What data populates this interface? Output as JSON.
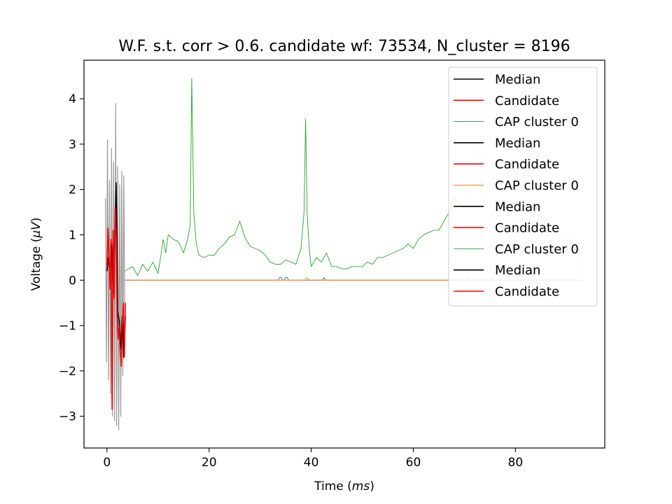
{
  "chart_data": {
    "type": "line",
    "title": "W.F. s.t. corr > 0.6. candidate wf: 73534, N_cluster = 8196",
    "xlabel_prefix": "Time (",
    "xlabel_unit": "ms",
    "xlabel_suffix": ")",
    "ylabel_prefix": "Voltage (",
    "ylabel_unit": "μV",
    "ylabel_suffix": ")",
    "xlim": [
      -4.5,
      97.5
    ],
    "ylim": [
      -3.7,
      4.85
    ],
    "xticks": [
      0,
      20,
      40,
      60,
      80
    ],
    "xtick_labels": [
      "0",
      "20",
      "40",
      "60",
      "80"
    ],
    "yticks": [
      -3,
      -2,
      -1,
      0,
      1,
      2,
      3,
      4
    ],
    "ytick_labels": [
      "−3",
      "−2",
      "−1",
      "0",
      "1",
      "2",
      "3",
      "4"
    ],
    "grid": false,
    "legend_position": "upper right",
    "legend": [
      {
        "label": "Median",
        "color": "#000000"
      },
      {
        "label": "Candidate",
        "color": "#ff0000"
      },
      {
        "label": "CAP cluster 0",
        "color": "#1f77b4"
      },
      {
        "label": "Median",
        "color": "#000000"
      },
      {
        "label": "Candidate",
        "color": "#ff0000"
      },
      {
        "label": "CAP cluster 0",
        "color": "#ff7f0e"
      },
      {
        "label": "Median",
        "color": "#000000"
      },
      {
        "label": "Candidate",
        "color": "#ff0000"
      },
      {
        "label": "CAP cluster 0",
        "color": "#2ca02c"
      },
      {
        "label": "Median",
        "color": "#000000"
      },
      {
        "label": "Candidate",
        "color": "#ff0000"
      }
    ],
    "series": [
      {
        "name": "CAP cluster 0",
        "color": "#2ca02c",
        "x": [
          3.5,
          5,
          6,
          7,
          8,
          9,
          10,
          10.5,
          11,
          11.5,
          12,
          13,
          14,
          15,
          15.8,
          16.3,
          16.6,
          17.0,
          17.5,
          18,
          19,
          20,
          21,
          22,
          23,
          24,
          25,
          26,
          27,
          28,
          29,
          30,
          31,
          32,
          33,
          34,
          35,
          36,
          37,
          38,
          38.6,
          38.9,
          39.2,
          39.6,
          40,
          41,
          42,
          43,
          44,
          45,
          46,
          47,
          48,
          49,
          50,
          51,
          52,
          53,
          54,
          55,
          56,
          57,
          58,
          59,
          60,
          61,
          62,
          63,
          64,
          65,
          66,
          67,
          68,
          69,
          70,
          71,
          72,
          73,
          74,
          75,
          76,
          77,
          78,
          79,
          80,
          81,
          82,
          83,
          84,
          85,
          86,
          87,
          88,
          89,
          90,
          91,
          92,
          93
        ],
        "y": [
          0.2,
          0.3,
          0.1,
          0.35,
          0.2,
          0.4,
          0.15,
          0.5,
          0.9,
          0.6,
          1.0,
          0.9,
          0.85,
          0.6,
          0.9,
          1.2,
          4.45,
          1.5,
          0.8,
          0.55,
          0.5,
          0.55,
          0.55,
          0.7,
          0.8,
          0.95,
          1.0,
          1.3,
          0.95,
          0.75,
          0.7,
          0.65,
          0.55,
          0.4,
          0.35,
          0.35,
          0.45,
          0.4,
          0.35,
          0.7,
          1.5,
          3.55,
          1.5,
          0.7,
          0.3,
          0.5,
          0.4,
          0.6,
          0.3,
          0.3,
          0.25,
          0.25,
          0.3,
          0.3,
          0.3,
          0.4,
          0.35,
          0.5,
          0.5,
          0.55,
          0.6,
          0.65,
          0.7,
          0.8,
          0.7,
          0.9,
          1.0,
          1.05,
          1.1,
          1.1,
          1.3,
          1.5,
          1.8,
          1.7,
          1.6,
          1.8,
          2.1,
          2.9,
          1.9,
          1.6,
          1.3,
          1.5,
          1.4,
          1.5,
          1.2,
          1.1,
          1.2,
          1.35,
          1.1,
          1.4,
          0.9,
          1.15,
          1.25,
          0.9,
          1.1,
          0.7,
          0.5,
          0.2
        ],
        "alpha_after_x": 70,
        "alpha_after": 0.25
      },
      {
        "name": "CAP cluster 0",
        "color": "#1f77b4",
        "x": [
          3.5,
          33.5,
          33.8,
          34.1,
          34.4,
          34.7,
          35.0,
          35.3,
          35.6,
          42.2,
          42.5,
          42.8,
          93
        ],
        "y": [
          0,
          0,
          0.06,
          0.06,
          0,
          0,
          0.06,
          0.06,
          0,
          0,
          0.06,
          0,
          0
        ]
      },
      {
        "name": "CAP cluster 0",
        "color": "#ff7f0e",
        "x": [
          3.5,
          38.8,
          39.0,
          39.3,
          39.6,
          70.6,
          70.8,
          71.0,
          93
        ],
        "y": [
          0,
          0,
          0.05,
          0.05,
          0,
          0,
          0.08,
          0,
          0
        ]
      },
      {
        "name": "",
        "color": "#999999",
        "x": [
          -0.3,
          -0.1,
          0.1,
          0.3,
          0.5,
          0.7,
          0.9,
          1.1,
          1.3,
          1.5,
          1.7,
          1.9,
          2.1,
          2.3,
          2.5,
          2.7,
          2.9,
          3.1,
          3.3,
          3.5
        ],
        "y": [
          1.8,
          -1.8,
          3.1,
          -2.2,
          2.2,
          -2.5,
          2.9,
          -3.0,
          2.6,
          -3.1,
          3.9,
          -3.2,
          2.5,
          -3.3,
          2.1,
          -3.0,
          2.4,
          -2.1,
          2.3,
          -1.0
        ]
      },
      {
        "name": "Median",
        "color": "#000000",
        "x": [
          0.0,
          0.3,
          0.6,
          0.9,
          1.2,
          1.5,
          1.8,
          2.1,
          2.4,
          2.7,
          3.0,
          3.3,
          3.6
        ],
        "y": [
          0.2,
          0.5,
          0.15,
          0.8,
          -0.3,
          0.9,
          2.15,
          -0.7,
          -0.9,
          -1.5,
          -0.8,
          -1.7,
          -0.8
        ]
      },
      {
        "name": "Candidate",
        "color": "#ff0000",
        "x": [
          0.0,
          0.2,
          0.4,
          0.6,
          0.8,
          1.0,
          1.2,
          1.4,
          1.6,
          1.8,
          2.0,
          2.2,
          2.4,
          2.6,
          2.8,
          3.0,
          3.2,
          3.4,
          3.6
        ],
        "y": [
          0.3,
          1.15,
          0.5,
          -0.2,
          0.9,
          -2.85,
          1.1,
          -0.4,
          1.6,
          1.0,
          -0.8,
          -1.3,
          -1.0,
          -1.6,
          -1.9,
          -0.9,
          -0.5,
          -1.7,
          -0.5
        ]
      }
    ]
  }
}
